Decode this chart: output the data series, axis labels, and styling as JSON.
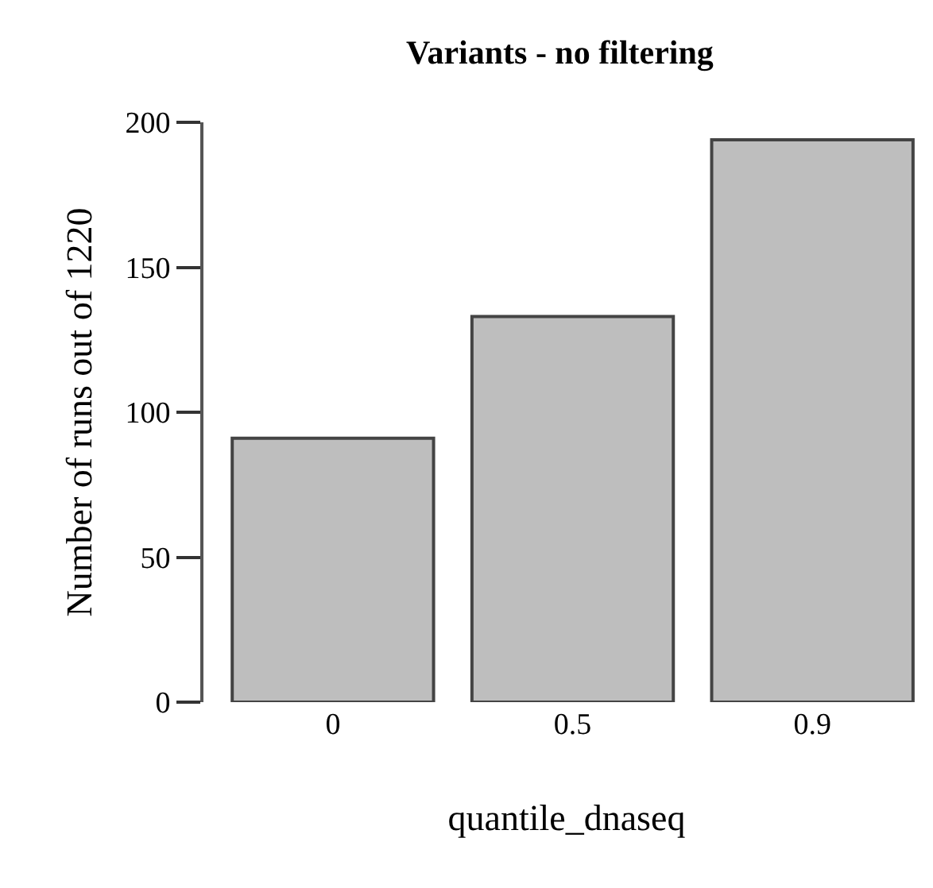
{
  "chart_data": {
    "type": "bar",
    "title": "Variants - no filtering",
    "xlabel": "quantile_dnaseq",
    "ylabel": "Number of runs out of 1220",
    "categories": [
      "0",
      "0.5",
      "0.9"
    ],
    "values": [
      91,
      133,
      194
    ],
    "color": "#bebebe",
    "ylim": [
      0,
      200
    ],
    "yticks": [
      0,
      50,
      100,
      150,
      200
    ],
    "grid": false,
    "legend": false
  }
}
